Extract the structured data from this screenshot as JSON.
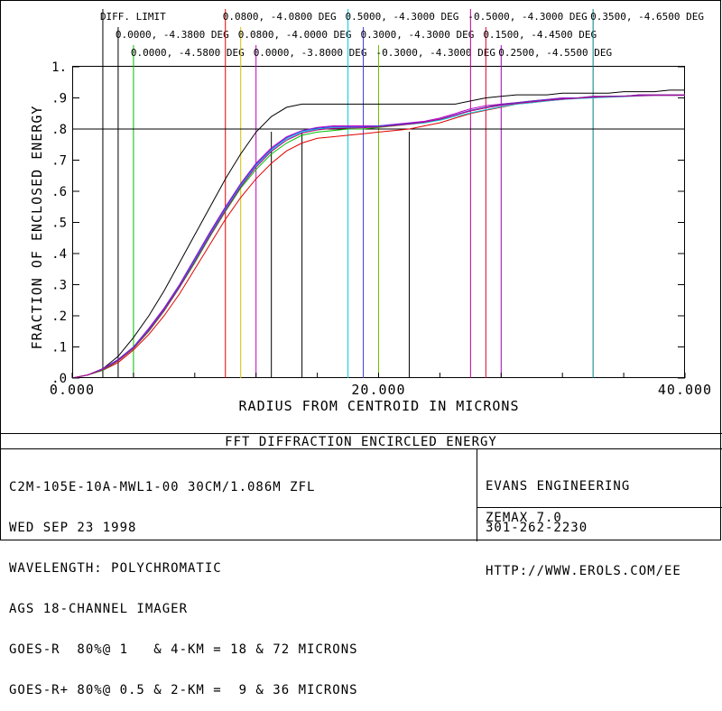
{
  "chart_data": {
    "type": "line",
    "title": "FFT DIFFRACTION ENCIRCLED ENERGY",
    "xlabel": "RADIUS FROM CENTROID IN MICRONS",
    "ylabel": "FRACTION OF ENCLOSED ENERGY",
    "xlim": [
      0,
      40
    ],
    "ylim": [
      0,
      1
    ],
    "x_ticks": [
      "0.000",
      "20.000",
      "40.000"
    ],
    "y_ticks": [
      ".0",
      ".1",
      ".2",
      ".3",
      ".4",
      ".5",
      ".6",
      ".7",
      ".8",
      ".9",
      "1."
    ],
    "reference_level": 0.8,
    "grid": false,
    "legend": [
      {
        "label": "DIFF. LIMIT",
        "x": 2.0,
        "color": "#000000"
      },
      {
        "label": "0.0000, -4.3800 DEG",
        "x": 3.0,
        "color": "#000000"
      },
      {
        "label": "0.0000, -4.5800 DEG",
        "x": 4.0,
        "color": "#00c000"
      },
      {
        "label": "0.0800, -4.0800 DEG",
        "x": 10.0,
        "color": "#e00000"
      },
      {
        "label": "0.0800, -4.0000 DEG",
        "x": 11.0,
        "color": "#d0c000"
      },
      {
        "label": "0.0000, -3.8000 DEG",
        "x": 12.0,
        "color": "#c000c0"
      },
      {
        "label": "0.5000, -4.3000 DEG",
        "x": 18.0,
        "color": "#00d0e0"
      },
      {
        "label": "0.3000, -4.3000 DEG",
        "x": 19.0,
        "color": "#4040e0"
      },
      {
        "label": "-0.3000, -4.3000 DEG",
        "x": 20.0,
        "color": "#70c000"
      },
      {
        "label": "-0.5000, -4.3000 DEG",
        "x": 26.0,
        "color": "#c00080"
      },
      {
        "label": "0.1500, -4.4500 DEG",
        "x": 27.0,
        "color": "#e00030"
      },
      {
        "label": "0.2500, -4.5500 DEG",
        "x": 28.0,
        "color": "#a000c0"
      },
      {
        "label": "0.3500, -4.6500 DEG",
        "x": 34.0,
        "color": "#008080"
      }
    ],
    "vertical_markers_x": [
      13.0,
      15.0,
      22.0
    ],
    "series": [
      {
        "color": "#000000",
        "x": [
          0,
          1,
          2,
          3,
          4,
          5,
          6,
          7,
          8,
          9,
          10,
          11,
          12,
          13,
          14,
          15,
          16,
          17,
          18,
          19,
          20,
          21,
          22,
          23,
          24,
          25,
          26,
          27,
          28,
          29,
          30,
          31,
          32,
          33,
          34,
          35,
          36,
          37,
          38,
          39,
          40
        ],
        "y": [
          0,
          0.01,
          0.03,
          0.07,
          0.13,
          0.2,
          0.28,
          0.37,
          0.46,
          0.55,
          0.64,
          0.72,
          0.79,
          0.84,
          0.87,
          0.88,
          0.88,
          0.88,
          0.88,
          0.88,
          0.88,
          0.88,
          0.88,
          0.88,
          0.88,
          0.88,
          0.89,
          0.9,
          0.905,
          0.91,
          0.91,
          0.91,
          0.915,
          0.915,
          0.915,
          0.915,
          0.92,
          0.92,
          0.92,
          0.925,
          0.925
        ]
      },
      {
        "color": "#e00000",
        "x": [
          0,
          1,
          2,
          3,
          4,
          5,
          6,
          7,
          8,
          9,
          10,
          11,
          12,
          13,
          14,
          15,
          16,
          17,
          18,
          19,
          20,
          21,
          22,
          23,
          24,
          25,
          26,
          27,
          28,
          29,
          30,
          31,
          32,
          33,
          34,
          35,
          36,
          37,
          38,
          39,
          40
        ],
        "y": [
          0,
          0.01,
          0.025,
          0.05,
          0.09,
          0.14,
          0.2,
          0.27,
          0.35,
          0.43,
          0.51,
          0.58,
          0.64,
          0.69,
          0.73,
          0.755,
          0.77,
          0.775,
          0.78,
          0.785,
          0.79,
          0.795,
          0.8,
          0.81,
          0.82,
          0.835,
          0.85,
          0.86,
          0.87,
          0.88,
          0.885,
          0.89,
          0.895,
          0.9,
          0.9,
          0.905,
          0.905,
          0.91,
          0.91,
          0.91,
          0.91
        ]
      },
      {
        "color": "#00c000",
        "x": [
          0,
          1,
          2,
          3,
          4,
          5,
          6,
          7,
          8,
          9,
          10,
          11,
          12,
          13,
          14,
          15,
          16,
          17,
          18,
          19,
          20,
          21,
          22,
          23,
          24,
          25,
          26,
          27,
          28,
          29,
          30,
          31,
          32,
          33,
          34,
          35,
          36,
          37,
          38,
          39,
          40
        ],
        "y": [
          0,
          0.01,
          0.025,
          0.055,
          0.095,
          0.15,
          0.215,
          0.29,
          0.37,
          0.455,
          0.535,
          0.61,
          0.67,
          0.72,
          0.755,
          0.78,
          0.79,
          0.795,
          0.8,
          0.8,
          0.805,
          0.81,
          0.815,
          0.82,
          0.83,
          0.845,
          0.86,
          0.87,
          0.88,
          0.885,
          0.89,
          0.895,
          0.9,
          0.9,
          0.905,
          0.905,
          0.905,
          0.91,
          0.91,
          0.91,
          0.91
        ]
      },
      {
        "color": "#c000c0",
        "x": [
          0,
          1,
          2,
          3,
          4,
          5,
          6,
          7,
          8,
          9,
          10,
          11,
          12,
          13,
          14,
          15,
          16,
          17,
          18,
          19,
          20,
          21,
          22,
          23,
          24,
          25,
          26,
          27,
          28,
          29,
          30,
          31,
          32,
          33,
          34,
          35,
          36,
          37,
          38,
          39,
          40
        ],
        "y": [
          0,
          0.01,
          0.03,
          0.06,
          0.1,
          0.16,
          0.225,
          0.3,
          0.385,
          0.47,
          0.55,
          0.625,
          0.69,
          0.74,
          0.775,
          0.795,
          0.805,
          0.81,
          0.81,
          0.81,
          0.81,
          0.815,
          0.82,
          0.825,
          0.835,
          0.85,
          0.865,
          0.875,
          0.88,
          0.885,
          0.89,
          0.895,
          0.9,
          0.9,
          0.905,
          0.905,
          0.905,
          0.91,
          0.91,
          0.91,
          0.91
        ]
      },
      {
        "color": "#00d0e0",
        "x": [
          0,
          1,
          2,
          3,
          4,
          5,
          6,
          7,
          8,
          9,
          10,
          11,
          12,
          13,
          14,
          15,
          16,
          17,
          18,
          19,
          20,
          21,
          22,
          23,
          24,
          25,
          26,
          27,
          28,
          29,
          30,
          31,
          32,
          33,
          34,
          35,
          36,
          37,
          38,
          39,
          40
        ],
        "y": [
          0,
          0.01,
          0.028,
          0.058,
          0.098,
          0.155,
          0.22,
          0.295,
          0.378,
          0.462,
          0.542,
          0.618,
          0.682,
          0.732,
          0.768,
          0.79,
          0.8,
          0.805,
          0.805,
          0.805,
          0.808,
          0.812,
          0.815,
          0.82,
          0.828,
          0.84,
          0.852,
          0.862,
          0.872,
          0.88,
          0.885,
          0.89,
          0.895,
          0.898,
          0.9,
          0.902,
          0.904,
          0.906,
          0.908,
          0.908,
          0.908
        ]
      },
      {
        "color": "#4040e0",
        "x": [
          0,
          1,
          2,
          3,
          4,
          5,
          6,
          7,
          8,
          9,
          10,
          11,
          12,
          13,
          14,
          15,
          16,
          17,
          18,
          19,
          20,
          21,
          22,
          23,
          24,
          25,
          26,
          27,
          28,
          29,
          30,
          31,
          32,
          33,
          34,
          35,
          36,
          37,
          38,
          39,
          40
        ],
        "y": [
          0,
          0.01,
          0.029,
          0.059,
          0.1,
          0.157,
          0.222,
          0.298,
          0.382,
          0.466,
          0.546,
          0.622,
          0.686,
          0.736,
          0.772,
          0.794,
          0.803,
          0.807,
          0.807,
          0.807,
          0.81,
          0.814,
          0.818,
          0.823,
          0.832,
          0.846,
          0.86,
          0.87,
          0.878,
          0.884,
          0.889,
          0.894,
          0.898,
          0.9,
          0.903,
          0.905,
          0.906,
          0.908,
          0.909,
          0.909,
          0.909
        ]
      },
      {
        "color": "#c00080",
        "x": [
          0,
          1,
          2,
          3,
          4,
          5,
          6,
          7,
          8,
          9,
          10,
          11,
          12,
          13,
          14,
          15,
          16,
          17,
          18,
          19,
          20,
          21,
          22,
          23,
          24,
          25,
          26,
          27,
          28,
          29,
          30,
          31,
          32,
          33,
          34,
          35,
          36,
          37,
          38,
          39,
          40
        ],
        "y": [
          0,
          0.01,
          0.027,
          0.056,
          0.096,
          0.152,
          0.217,
          0.292,
          0.374,
          0.458,
          0.538,
          0.614,
          0.678,
          0.728,
          0.764,
          0.787,
          0.797,
          0.802,
          0.803,
          0.804,
          0.807,
          0.811,
          0.816,
          0.822,
          0.831,
          0.844,
          0.858,
          0.868,
          0.876,
          0.882,
          0.887,
          0.892,
          0.896,
          0.899,
          0.902,
          0.904,
          0.905,
          0.907,
          0.908,
          0.908,
          0.908
        ]
      }
    ]
  },
  "info": {
    "line1": "C2M-105E-10A-MWL1-00 30CM/1.086M ZFL",
    "line2": "WED SEP 23 1998",
    "line3": "WAVELENGTH: POLYCHROMATIC",
    "line4": "AGS 18-CHANNEL IMAGER",
    "line5": "GOES-R  80%@ 1   & 4-KM = 18 & 72 MICRONS",
    "line6": "GOES-R+ 80%@ 0.5 & 2-KM =  9 & 36 MICRONS"
  },
  "company": {
    "name": "EVANS ENGINEERING",
    "phone": "301-262-2230",
    "url": "HTTP://WWW.EROLS.COM/EE",
    "software": "ZEMAX 7.0"
  }
}
